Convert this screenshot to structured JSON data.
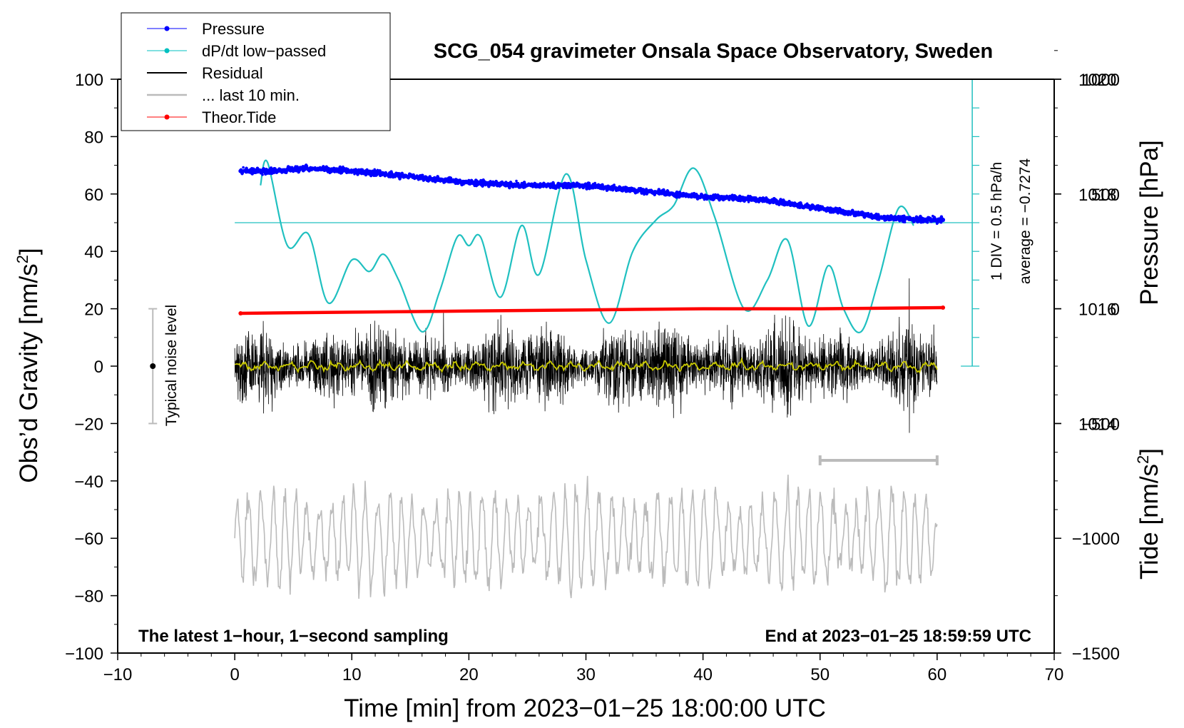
{
  "chart_data": {
    "type": "line",
    "title": "SCG_054 gravimeter Onsala Space Observatory, Sweden",
    "xlabel": "Time [min] from 2023−01−25 18:00:00 UTC",
    "ylabel_left": "Obs’d Gravity [nm/s",
    "ylabel_left_sup": "2",
    "ylabel_left_end": "]",
    "ylabel_pressure": "Pressure [hPa]",
    "ylabel_tide": "Tide [nm/s",
    "ylabel_tide_sup": "2",
    "ylabel_tide_end": "]",
    "xlim": [
      -10,
      70
    ],
    "ylim": [
      -100,
      100
    ],
    "pressure_ylim": [
      1010,
      1020
    ],
    "tide_ylim": [
      -1500,
      1000
    ],
    "x_ticks": [
      -10,
      0,
      10,
      20,
      30,
      40,
      50,
      60,
      70
    ],
    "x_tick_labels": [
      "−10",
      "0",
      "10",
      "20",
      "30",
      "40",
      "50",
      "60",
      "70"
    ],
    "y_ticks": [
      -100,
      -80,
      -60,
      -40,
      -20,
      0,
      20,
      40,
      60,
      80,
      100
    ],
    "y_tick_labels": [
      "−100",
      "−80",
      "−60",
      "−40",
      "−20",
      "0",
      "20",
      "40",
      "60",
      "80",
      "100"
    ],
    "pressure_ticks": [
      1014,
      1016,
      1018,
      1020
    ],
    "pressure_tick_labels": [
      "1014",
      "1016",
      "1018",
      "1020"
    ],
    "tide_ticks": [
      -1500,
      -1000,
      -500,
      0,
      500,
      1000
    ],
    "tide_tick_labels": [
      "−1500",
      "−1000",
      "−500",
      "0",
      "500",
      "1000"
    ],
    "legend": {
      "position": "top-left",
      "entries": [
        {
          "label": "Pressure",
          "color": "#0000ff",
          "marker": true
        },
        {
          "label": "dP/dt low−passed",
          "color": "#00c0c0",
          "marker": true
        },
        {
          "label": "Residual",
          "color": "#000000",
          "marker": false
        },
        {
          "label": "... last 10 min.",
          "color": "#bbbbbb",
          "marker": false
        },
        {
          "label": "Theor.Tide",
          "color": "#ff0000",
          "marker": true
        }
      ]
    },
    "annotations": {
      "bottom_left": "The latest 1−hour, 1−second sampling",
      "bottom_right": "End at 2023−01−25 18:59:59 UTC",
      "noise_label": "Typical noise level",
      "dpdt_scale": "1 DIV = 0.5 hPa/h",
      "dpdt_average": "average = −0.7274"
    },
    "noise_bar": {
      "x": -7,
      "center": 0,
      "low": -20,
      "high": 20
    },
    "last10_bar": {
      "x_start": 50,
      "x_end": 60
    },
    "dpdt_scale_axis": {
      "x": 63,
      "bottom": 0,
      "top": 100,
      "div_step": 10
    },
    "series": [
      {
        "name": "Pressure",
        "axis": "pressure",
        "color": "#0000ff",
        "x": [
          0.5,
          3,
          6,
          10,
          15,
          20,
          25,
          30,
          35,
          40,
          45,
          50,
          55,
          58,
          60.5
        ],
        "y": [
          1018.4,
          1018.4,
          1018.45,
          1018.4,
          1018.3,
          1018.2,
          1018.15,
          1018.15,
          1018.05,
          1017.95,
          1017.9,
          1017.75,
          1017.6,
          1017.55,
          1017.55
        ]
      },
      {
        "name": "dP/dt low-passed",
        "axis": "gravity",
        "color": "#20c0c0",
        "x": [
          2.2,
          2.8,
          4.5,
          6.3,
          8,
          10,
          11.5,
          12.7,
          14,
          16,
          17.5,
          19,
          20,
          21,
          22.7,
          24.5,
          26,
          28.3,
          30,
          32,
          34,
          36,
          37.5,
          39.2,
          41,
          43.5,
          45.5,
          47.2,
          49,
          50.7,
          52,
          53.5,
          55,
          56.7,
          58
        ],
        "y": [
          63,
          71,
          42,
          46,
          22,
          37,
          33,
          39,
          30,
          12,
          26,
          45,
          42,
          45,
          24,
          49,
          32,
          67,
          37,
          15,
          40,
          51,
          56,
          69,
          52,
          20,
          30,
          44,
          14,
          35,
          20,
          12,
          30,
          55,
          49
        ]
      },
      {
        "name": "Residual",
        "axis": "gravity",
        "color": "#000000",
        "x_start": 0,
        "x_end": 60,
        "amplitude": 12,
        "peak_extremes": [
          -34,
          38
        ]
      },
      {
        "name": "Residual smoothed",
        "axis": "gravity",
        "color": "#c8c800",
        "x_start": 0,
        "x_end": 60,
        "amplitude": 1.5
      },
      {
        "name": "... last 10 min.",
        "axis": "gravity",
        "color": "#bbbbbb",
        "x_start": 0,
        "x_end": 60,
        "center": -60,
        "amplitude": 14,
        "extremes": [
          -92,
          -40
        ]
      },
      {
        "name": "Theor.Tide",
        "axis": "tide",
        "color": "#ff0000",
        "x": [
          0.5,
          10,
          20,
          30,
          40,
          50,
          60.5
        ],
        "y": [
          -20,
          -15,
          -10,
          -5,
          0,
          0,
          5
        ]
      }
    ]
  }
}
